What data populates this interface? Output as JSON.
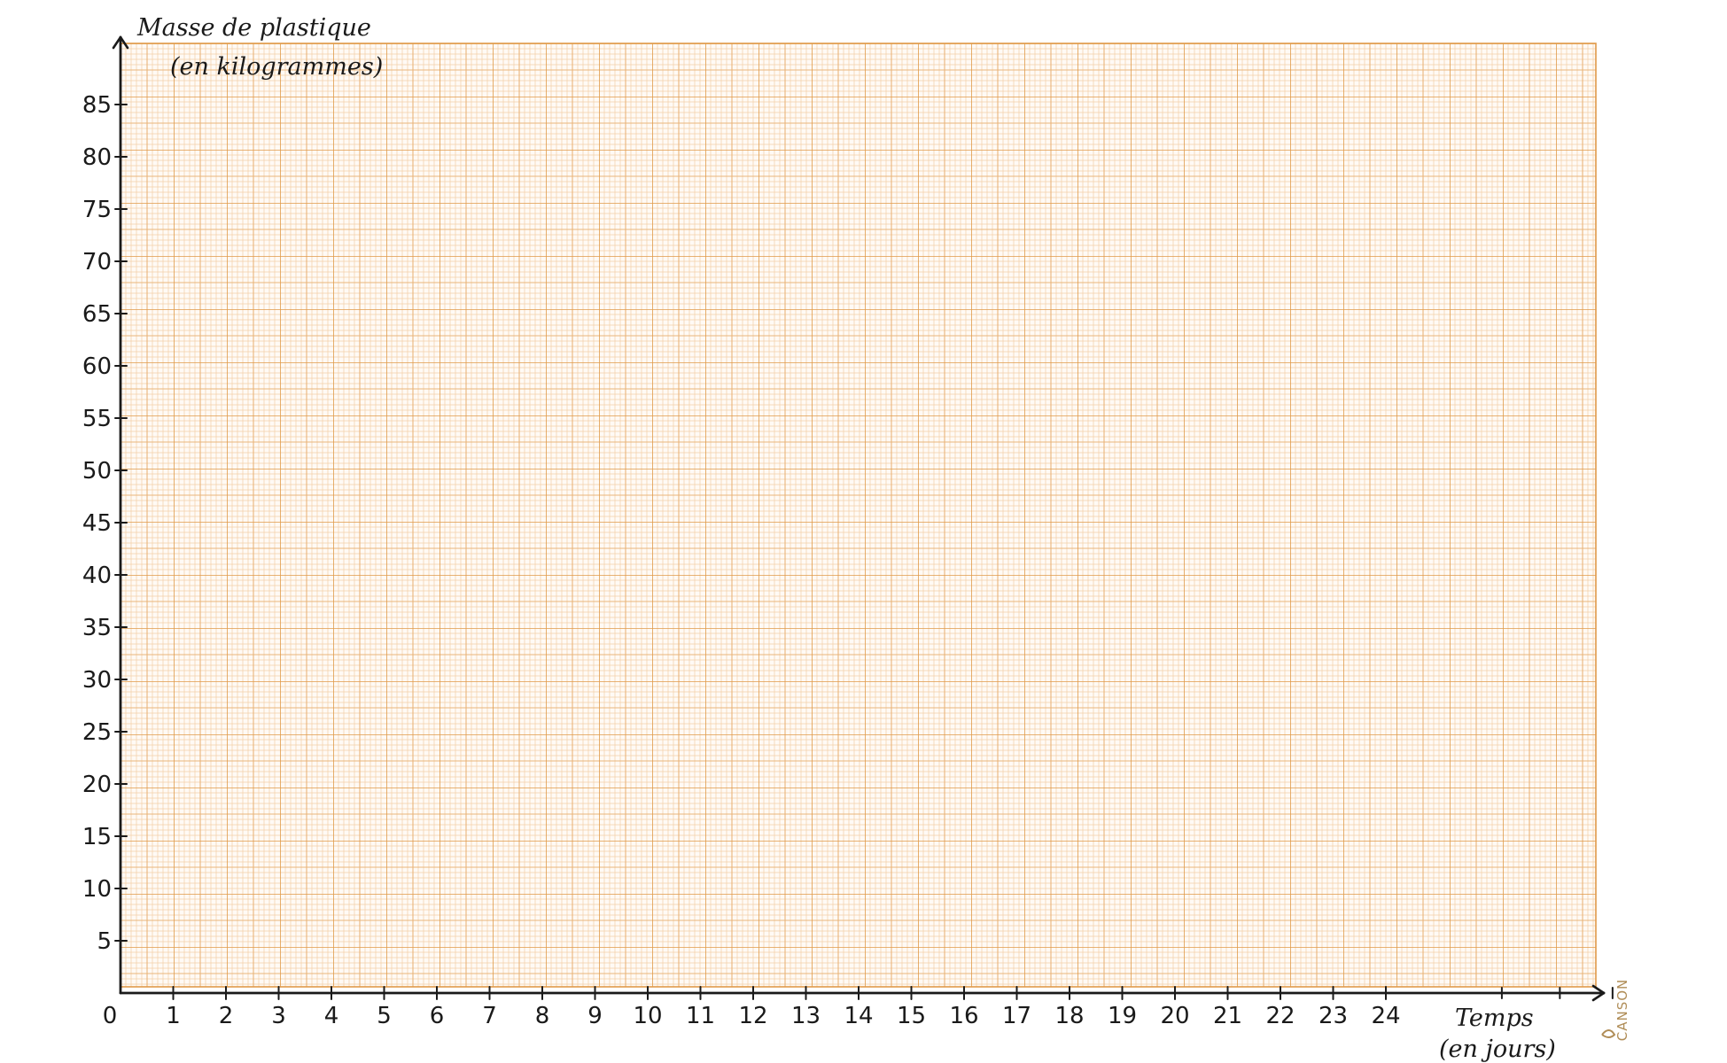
{
  "chart_data": {
    "type": "line",
    "title": "",
    "series": [],
    "xlabel_line1": "Temps",
    "xlabel_line2": "(en jours)",
    "ylabel_line1": "Masse de plastique",
    "ylabel_line2": "(en kilogrammes)",
    "xlim": [
      0,
      24
    ],
    "ylim": [
      0,
      85
    ],
    "x_ticks": [
      "0",
      "1",
      "2",
      "3",
      "4",
      "5",
      "6",
      "7",
      "8",
      "9",
      "10",
      "11",
      "12",
      "13",
      "14",
      "15",
      "16",
      "17",
      "18",
      "19",
      "20",
      "21",
      "22",
      "23",
      "24"
    ],
    "y_ticks": [
      "5",
      "10",
      "15",
      "20",
      "25",
      "30",
      "35",
      "40",
      "45",
      "50",
      "55",
      "60",
      "65",
      "70",
      "75",
      "80",
      "85"
    ],
    "grid": true,
    "paper": "millimetre",
    "grid_color_major": "#e3a24f",
    "grid_color_minor": "#f2c79a",
    "axis_color": "#1a1a1a"
  },
  "brand": "CANSON"
}
